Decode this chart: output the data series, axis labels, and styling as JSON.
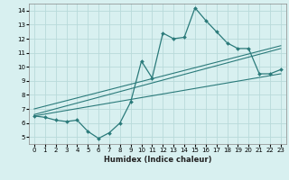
{
  "xlabel": "Humidex (Indice chaleur)",
  "bg_color": "#d8f0f0",
  "grid_color": "#b8dada",
  "line_color": "#2a7a7a",
  "xlim": [
    -0.5,
    23.5
  ],
  "ylim": [
    4.5,
    14.5
  ],
  "xticks": [
    0,
    1,
    2,
    3,
    4,
    5,
    6,
    7,
    8,
    9,
    10,
    11,
    12,
    13,
    14,
    15,
    16,
    17,
    18,
    19,
    20,
    21,
    22,
    23
  ],
  "yticks": [
    5,
    6,
    7,
    8,
    9,
    10,
    11,
    12,
    13,
    14
  ],
  "main_x": [
    0,
    1,
    2,
    3,
    4,
    5,
    6,
    7,
    8,
    9,
    10,
    11,
    12,
    13,
    14,
    15,
    16,
    17,
    18,
    19,
    20,
    21,
    22,
    23
  ],
  "main_y": [
    6.5,
    6.4,
    6.2,
    6.1,
    6.2,
    5.4,
    4.9,
    5.3,
    6.0,
    7.5,
    10.4,
    9.2,
    12.4,
    12.0,
    12.1,
    14.2,
    13.3,
    12.5,
    11.7,
    11.3,
    11.3,
    9.5,
    9.5,
    9.8
  ],
  "line1_x": [
    0,
    23
  ],
  "line1_y": [
    6.6,
    11.3
  ],
  "line2_x": [
    0,
    23
  ],
  "line2_y": [
    7.0,
    11.5
  ],
  "line3_x": [
    0,
    23
  ],
  "line3_y": [
    6.5,
    9.5
  ]
}
